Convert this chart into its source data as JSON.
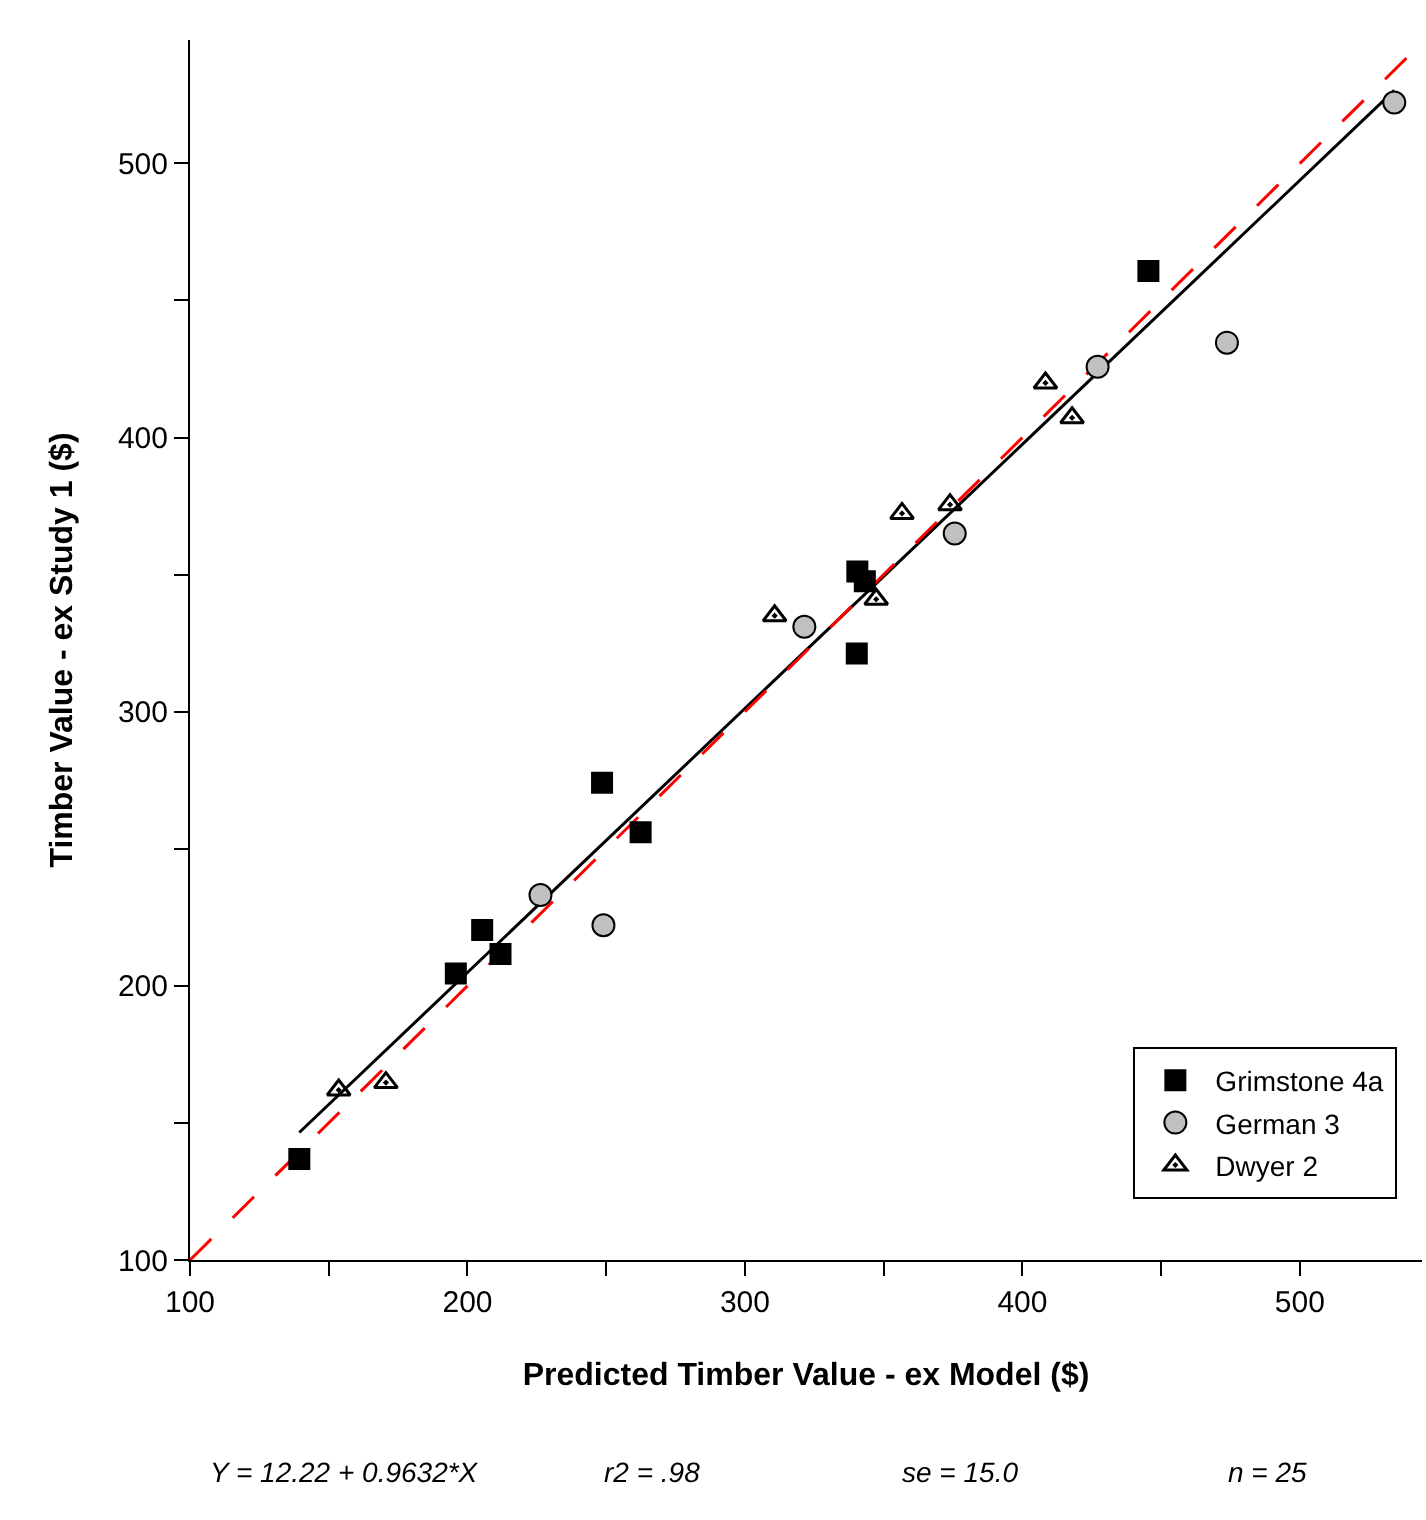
{
  "chart_data": {
    "type": "scatter",
    "xlabel": "Predicted Timber Value - ex Model ($)",
    "ylabel": "Timber Value - ex Study 1 ($)",
    "xlim": [
      100,
      544
    ],
    "ylim": [
      100,
      545
    ],
    "xticks": [
      100,
      {
        "value": 150,
        "label": null
      },
      200,
      {
        "value": 250,
        "label": null
      },
      300,
      {
        "value": 350,
        "label": null
      },
      400,
      {
        "value": 450,
        "label": null
      },
      500
    ],
    "yticks": [
      100,
      {
        "value": 150,
        "label": null
      },
      200,
      {
        "value": 250,
        "label": null
      },
      300,
      {
        "value": 350,
        "label": null
      },
      400,
      {
        "value": 450,
        "label": null
      },
      500
    ],
    "legend": "bottom right",
    "series": [
      {
        "name": "Grimstone 4a",
        "color": "#000000",
        "marker": "square",
        "x": [
          139.4,
          195.8,
          205.3,
          211.9,
          248.5,
          262.4,
          340.5,
          343.2,
          340.3,
          445.4
        ],
        "values": [
          136.8,
          204.5,
          220.4,
          211.6,
          274.1,
          256.0,
          351.1,
          347.6,
          321.2,
          460.7
        ]
      },
      {
        "name": "German 3",
        "color": "#c0c0c0",
        "marker": "circle",
        "x": [
          226.3,
          249.0,
          321.4,
          375.6,
          427.1,
          473.7,
          534.0
        ],
        "values": [
          233.1,
          222.1,
          331.0,
          365.0,
          425.8,
          434.6,
          522.2
        ]
      },
      {
        "name": "Dwyer 2",
        "color": "#000000",
        "marker": "triangle",
        "x": [
          153.6,
          170.6,
          310.7,
          347.3,
          356.6,
          373.9,
          408.3,
          417.9
        ],
        "values": [
          162.0,
          164.7,
          335.0,
          341.0,
          372.3,
          375.5,
          419.9,
          407.2
        ]
      },
      {
        "type": "line",
        "color": "#000000",
        "line_style": "solid",
        "x": [
          139.4,
          534.0
        ],
        "values": [
          146.5,
          526.6
        ]
      },
      {
        "type": "line",
        "color": "#ff0000",
        "line_style": "dashed",
        "x": [
          100,
          544
        ],
        "values": [
          100,
          544
        ]
      }
    ],
    "annotations": [
      "Y = 12.22 + 0.9632*X",
      "r2 = .98",
      "se = 15.0",
      "n = 25"
    ]
  }
}
